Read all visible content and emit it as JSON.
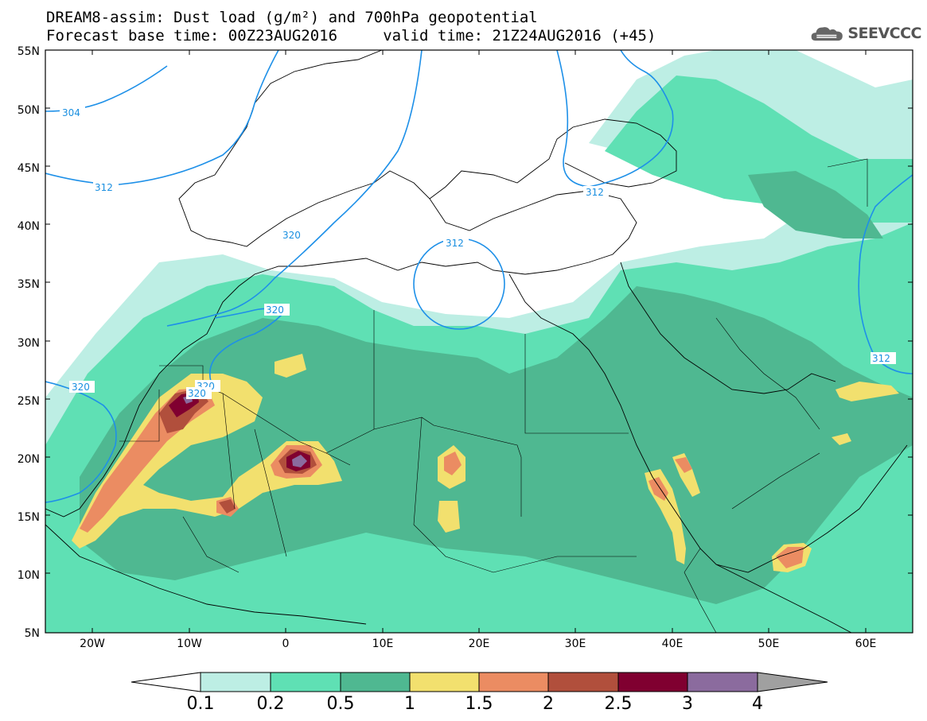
{
  "title": {
    "line1": "DREAM8-assim: Dust load (g/m²) and 700hPa geopotential",
    "line2": "Forecast base time: 00Z23AUG2016     valid time: 21Z24AUG2016 (+45)"
  },
  "logo": {
    "icon": "cloud-icon",
    "text": "SEEVCCC"
  },
  "map": {
    "lat_labels": [
      "55N",
      "50N",
      "45N",
      "40N",
      "35N",
      "30N",
      "25N",
      "20N",
      "15N",
      "10N",
      "5N"
    ],
    "lon_labels": [
      "20W",
      "10W",
      "0",
      "10E",
      "20E",
      "30E",
      "40E",
      "50E",
      "60E"
    ],
    "contour_labels": [
      "304",
      "312",
      "320",
      "312",
      "312",
      "320",
      "320",
      "320",
      "320",
      "312"
    ]
  },
  "colorbar": {
    "ticks": [
      "0.1",
      "0.2",
      "0.5",
      "1",
      "1.5",
      "2",
      "2.5",
      "3",
      "4"
    ],
    "colors": [
      "#ffffff",
      "#bdeee4",
      "#5fe0b4",
      "#4fb891",
      "#f2e06e",
      "#eb8c62",
      "#b14f3c",
      "#800030",
      "#8b6b9e",
      "#a0a0a0"
    ]
  }
}
